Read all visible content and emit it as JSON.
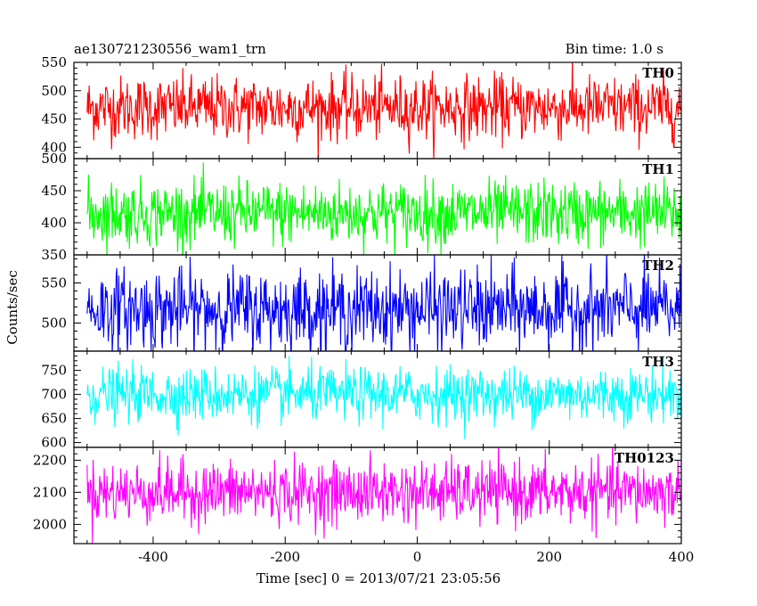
{
  "header": {
    "title": "ae130721230556_wam1_trn",
    "bin_time": "Bin time: 1.0 s"
  },
  "chart_data": {
    "type": "line",
    "xlabel": "Time [sec] 0 = 2013/07/21 23:05:56",
    "ylabel": "Counts/sec",
    "xlim": [
      -520,
      400
    ],
    "xticks": [
      -400,
      -200,
      0,
      200,
      400
    ],
    "x_start": -500,
    "x_end": 399,
    "x_step": 1,
    "panels": [
      {
        "name": "TH0",
        "color": "#ff0000",
        "ylim": [
          380,
          550
        ],
        "yticks": [
          400,
          450,
          500,
          550
        ],
        "mean": 470,
        "sd": 28
      },
      {
        "name": "TH1",
        "color": "#00ff00",
        "ylim": [
          350,
          500
        ],
        "yticks": [
          350,
          400,
          450,
          500
        ],
        "mean": 415,
        "sd": 25
      },
      {
        "name": "TH2",
        "color": "#0000ff",
        "ylim": [
          465,
          585
        ],
        "yticks": [
          500,
          550
        ],
        "mean": 517,
        "sd": 25
      },
      {
        "name": "TH3",
        "color": "#00ffff",
        "ylim": [
          590,
          790
        ],
        "yticks": [
          600,
          650,
          700,
          750
        ],
        "mean": 700,
        "sd": 28
      },
      {
        "name": "TH0123",
        "color": "#ff00ff",
        "ylim": [
          1940,
          2240
        ],
        "yticks": [
          2000,
          2100,
          2200
        ],
        "mean": 2100,
        "sd": 48
      }
    ]
  }
}
